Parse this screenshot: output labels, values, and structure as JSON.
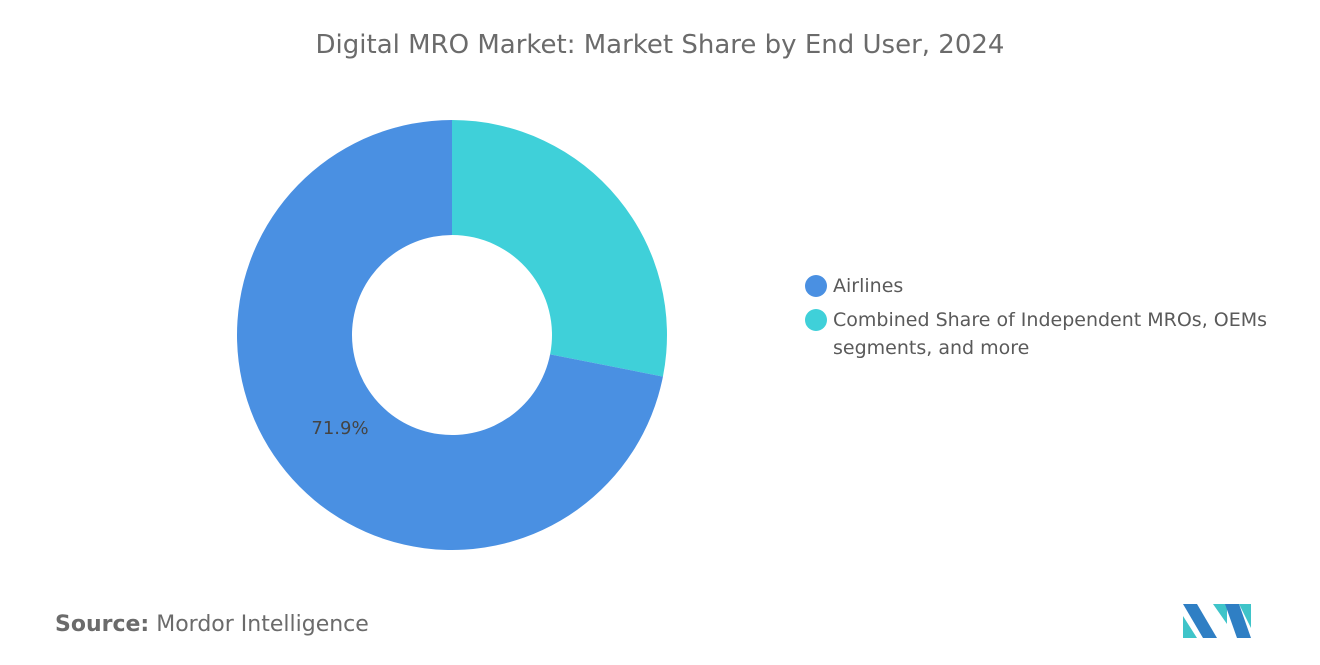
{
  "chart_data": {
    "type": "pie",
    "title": "Digital MRO Market: Market Share by End User, 2024",
    "donut": true,
    "slices": [
      {
        "name": "Airlines",
        "value": 71.9,
        "color": "#4a90e2",
        "label": "71.9%"
      },
      {
        "name": "Combined Share of Independent MROs, OEMs segments, and more",
        "value": 28.1,
        "color": "#3fd0d9",
        "label": ""
      }
    ],
    "legend_position": "right"
  },
  "source": {
    "label": "Source:",
    "value": "Mordor Intelligence"
  },
  "legend": [
    {
      "label": "Airlines"
    },
    {
      "label": "Combined Share of Independent MROs, OEMs segments, and more"
    }
  ]
}
